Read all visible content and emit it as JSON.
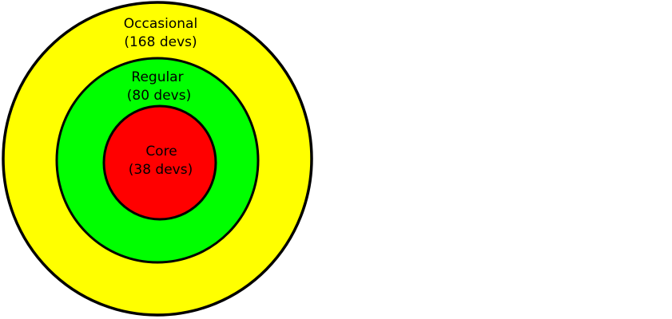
{
  "rings": [
    {
      "id": "occasional",
      "name": "Occasional",
      "count_text": "(168 devs)",
      "color": "#ffff00"
    },
    {
      "id": "regular",
      "name": "Regular",
      "count_text": "(80 devs)",
      "color": "#00ff00"
    },
    {
      "id": "core",
      "name": "Core",
      "count_text": "(38 devs)",
      "color": "#ff0000"
    }
  ],
  "stroke_color": "#000000"
}
